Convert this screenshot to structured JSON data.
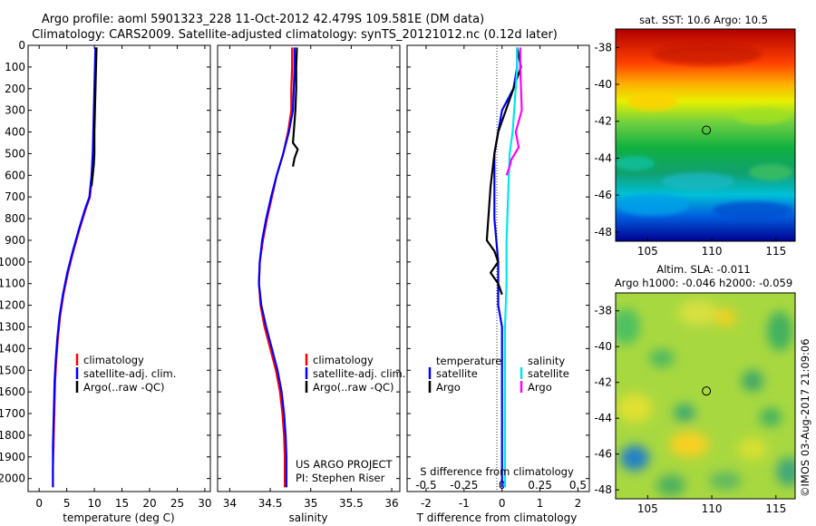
{
  "header": {
    "line1": "Argo profile: aoml 5901323_228 11-Oct-2012 42.479S 109.581E (DM data)",
    "line2": "Climatology: CARS2009. Satellite-adjusted climatology: synTS_20121012.nc (0.12d later)"
  },
  "colors": {
    "climatology": "#ff0000",
    "satellite": "#0000ff",
    "argo": "#000000",
    "salinity_satellite": "#00e5ee",
    "salinity_argo": "#ff00ff"
  },
  "chart_data": [
    {
      "type": "line",
      "id": "temperature",
      "xlabel": "temperature (deg C)",
      "ylabel": "",
      "xlim": [
        -2,
        31
      ],
      "ylim": [
        2060,
        0
      ],
      "xticks": [
        "0",
        "5",
        "10",
        "15",
        "20",
        "25",
        "30"
      ],
      "yticks": [
        "0",
        "100",
        "200",
        "300",
        "400",
        "500",
        "600",
        "700",
        "800",
        "900",
        "1000",
        "1100",
        "1200",
        "1300",
        "1400",
        "1500",
        "1600",
        "1700",
        "1800",
        "1900",
        "2000"
      ],
      "legend": [
        "climatology",
        "satellite-adj. clim.",
        "Argo(..raw -QC)"
      ],
      "series": [
        {
          "name": "climatology",
          "color": "#ff0000",
          "x": [
            10.3,
            10.2,
            10.1,
            10.0,
            9.9,
            9.8,
            9.6,
            9.2,
            8.5,
            7.3,
            6.2,
            5.2,
            4.4,
            3.8,
            3.4,
            3.1,
            2.9,
            2.8,
            2.7,
            2.6,
            2.5,
            2.5
          ],
          "y": [
            10,
            100,
            200,
            300,
            400,
            500,
            600,
            700,
            750,
            850,
            950,
            1050,
            1150,
            1250,
            1350,
            1450,
            1550,
            1650,
            1750,
            1850,
            1950,
            2040
          ]
        },
        {
          "name": "satellite-adj. clim.",
          "color": "#0000ff",
          "x": [
            10.2,
            10.1,
            10.0,
            9.9,
            9.8,
            9.7,
            9.5,
            9.1,
            8.4,
            7.2,
            6.1,
            5.1,
            4.3,
            3.7,
            3.3,
            3.0,
            2.8,
            2.7,
            2.6,
            2.5,
            2.5,
            2.5
          ],
          "y": [
            10,
            100,
            200,
            300,
            400,
            500,
            600,
            700,
            750,
            850,
            950,
            1050,
            1150,
            1250,
            1350,
            1450,
            1550,
            1650,
            1750,
            1850,
            1950,
            2040
          ]
        },
        {
          "name": "Argo(..raw -QC)",
          "color": "#000000",
          "x": [
            10.4,
            10.3,
            10.2,
            10.1,
            10.0,
            10.0,
            9.9,
            9.5
          ],
          "y": [
            10,
            100,
            200,
            300,
            400,
            500,
            550,
            650
          ]
        }
      ]
    },
    {
      "type": "line",
      "id": "salinity",
      "xlabel": "salinity",
      "xlim": [
        33.85,
        36.1
      ],
      "ylim": [
        2060,
        0
      ],
      "xticks": [
        "34",
        "34.5",
        "35",
        "35.5",
        "36"
      ],
      "legend": [
        "climatology",
        "satellite-adj. clim.",
        "Argo(..raw -QC)"
      ],
      "annotations": [
        "US ARGO PROJECT",
        "PI: Stephen Riser"
      ],
      "series": [
        {
          "name": "climatology",
          "color": "#ff0000",
          "x": [
            34.77,
            34.77,
            34.76,
            34.76,
            34.72,
            34.66,
            34.58,
            34.52,
            34.46,
            34.41,
            34.37,
            34.36,
            34.38,
            34.43,
            34.5,
            34.57,
            34.62,
            34.65,
            34.67,
            34.68,
            34.68
          ],
          "y": [
            10,
            100,
            200,
            300,
            400,
            500,
            600,
            700,
            800,
            900,
            1000,
            1100,
            1200,
            1300,
            1400,
            1500,
            1600,
            1700,
            1800,
            1900,
            2040
          ]
        },
        {
          "name": "satellite-adj. clim.",
          "color": "#0000ff",
          "x": [
            34.8,
            34.8,
            34.79,
            34.78,
            34.73,
            34.66,
            34.58,
            34.51,
            34.45,
            34.4,
            34.37,
            34.36,
            34.39,
            34.45,
            34.52,
            34.59,
            34.64,
            34.67,
            34.69,
            34.7,
            34.7
          ],
          "y": [
            10,
            100,
            200,
            300,
            400,
            500,
            600,
            700,
            800,
            900,
            1000,
            1100,
            1200,
            1300,
            1400,
            1500,
            1600,
            1700,
            1800,
            1900,
            2040
          ]
        },
        {
          "name": "Argo(..raw -QC)",
          "color": "#000000",
          "x": [
            34.83,
            34.82,
            34.82,
            34.81,
            34.79,
            34.78,
            34.84,
            34.8,
            34.78
          ],
          "y": [
            10,
            100,
            200,
            300,
            400,
            450,
            480,
            520,
            560
          ]
        }
      ]
    },
    {
      "type": "line",
      "id": "difference",
      "xlabel": "T difference from climatology",
      "top_label": "S difference from climatology",
      "xlim": [
        -2.5,
        2.3
      ],
      "ylim": [
        2060,
        0
      ],
      "xticks": [
        "-2",
        "-1",
        "0",
        "1",
        "2"
      ],
      "xticks_top": [
        "-0.5",
        "-0.25",
        "0",
        "0.25",
        "0.5"
      ],
      "legend_groups": [
        {
          "title": "temperature",
          "items": [
            "satellite",
            "Argo"
          ]
        },
        {
          "title": "salinity",
          "items": [
            "satellite",
            "Argo"
          ]
        }
      ],
      "series": [
        {
          "name": "temperature satellite",
          "color": "#0000ff",
          "x": [
            0.4,
            0.4,
            0.3,
            0.0,
            -0.1,
            -0.2,
            -0.2,
            -0.2,
            -0.1,
            -0.1,
            0.0,
            0.0,
            0.0,
            0.0,
            0.0,
            0.0,
            0.0,
            0.0
          ],
          "y": [
            10,
            100,
            200,
            300,
            400,
            500,
            600,
            800,
            1000,
            1200,
            1300,
            1400,
            1500,
            1600,
            1700,
            1800,
            1900,
            2040
          ]
        },
        {
          "name": "temperature Argo",
          "color": "#000000",
          "x": [
            0.4,
            0.5,
            0.3,
            0.1,
            -0.1,
            -0.2,
            -0.3,
            -0.4,
            -0.2,
            -0.1,
            -0.3,
            -0.1,
            0.0
          ],
          "y": [
            10,
            100,
            200,
            300,
            400,
            500,
            650,
            900,
            950,
            1000,
            1050,
            1100,
            1150
          ]
        },
        {
          "name": "salinity satellite",
          "color": "#00e5ee",
          "x": [
            0.1,
            0.1,
            0.09,
            0.08,
            0.07,
            0.05,
            0.04,
            0.03,
            0.03,
            0.02,
            0.02,
            0.02,
            0.02,
            0.02
          ],
          "y": [
            10,
            100,
            200,
            300,
            400,
            500,
            700,
            900,
            1100,
            1300,
            1500,
            1700,
            1900,
            2040
          ]
        },
        {
          "name": "salinity Argo",
          "color": "#ff00ff",
          "x": [
            0.12,
            0.12,
            0.13,
            0.09,
            0.11,
            0.06,
            0.05,
            0.03
          ],
          "y": [
            10,
            100,
            300,
            400,
            470,
            530,
            560,
            600
          ]
        }
      ]
    },
    {
      "type": "heatmap",
      "id": "sst-map",
      "title": "sat. SST: 10.6  Argo: 10.5",
      "xlim": [
        102.5,
        116.5
      ],
      "ylim": [
        -48.5,
        -37
      ],
      "xticks": [
        "105",
        "110",
        "115"
      ],
      "yticks": [
        "-38",
        "-40",
        "-42",
        "-44",
        "-46",
        "-48"
      ],
      "marker": {
        "lon": 109.58,
        "lat": -42.48
      }
    },
    {
      "type": "heatmap",
      "id": "sla-map",
      "title": "Altim. SLA: -0.011",
      "subtitle": "Argo h1000: -0.046 h2000: -0.059",
      "xlim": [
        102.5,
        116.5
      ],
      "ylim": [
        -48.5,
        -37
      ],
      "xticks": [
        "105",
        "110",
        "115"
      ],
      "yticks": [
        "-38",
        "-40",
        "-42",
        "-44",
        "-46",
        "-48"
      ],
      "marker": {
        "lon": 109.58,
        "lat": -42.48
      }
    }
  ],
  "footer": {
    "stamp": "©IMOS 03-Aug-2017 21:09:06"
  }
}
